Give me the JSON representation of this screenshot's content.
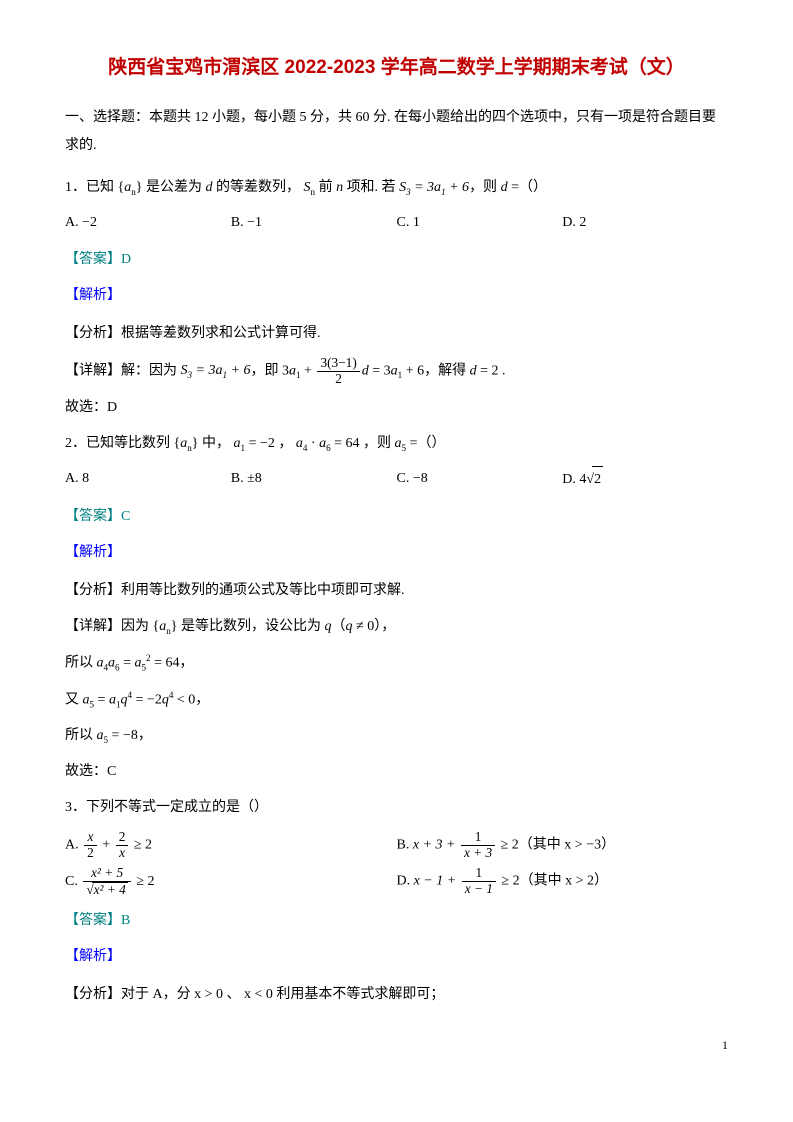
{
  "title": "陕西省宝鸡市渭滨区 2022-2023 学年高二数学上学期期末考试（文）",
  "section_header": "一、选择题：本题共 12 小题，每小题 5 分，共 60 分. 在每小题给出的四个选项中，只有一项是符合题目要求的.",
  "colors": {
    "title": "#c00000",
    "answer": "#008080",
    "analysis": "#0000ff",
    "text": "#000000",
    "background": "#ffffff"
  },
  "q1": {
    "num": "1．",
    "stem_part1": "已知 {",
    "stem_var1": "a",
    "stem_sub1": "n",
    "stem_part2": "} 是公差为 ",
    "stem_var2": "d",
    "stem_part3": " 的等差数列， ",
    "stem_var3": "S",
    "stem_sub3": "n",
    "stem_part4": " 前 ",
    "stem_var4": "n",
    "stem_part5": " 项和. 若 ",
    "stem_eq": "S₃ = 3a₁ + 6",
    "stem_part6": "，则 ",
    "stem_var5": "d",
    "stem_part7": " =（）",
    "optA_label": "A.",
    "optA": "−2",
    "optB_label": "B.",
    "optB": "−1",
    "optC_label": "C.",
    "optC": "1",
    "optD_label": "D.",
    "optD": "2",
    "answer": "【答案】D",
    "analysis_label": "【解析】",
    "analysis_line1": "【分析】根据等差数列求和公式计算可得.",
    "detail_prefix": "【详解】解：因为 ",
    "detail_eq1": "S₃ = 3a₁ + 6",
    "detail_mid1": "，即 3",
    "detail_var1": "a",
    "detail_sub1": "1",
    "detail_mid2": " + ",
    "frac_num": "3(3−1)",
    "frac_den": "2",
    "detail_var2": "d",
    "detail_mid3": " = 3",
    "detail_var3": "a",
    "detail_sub3": "1",
    "detail_mid4": " + 6，解得 ",
    "detail_var4": "d",
    "detail_mid5": " = 2 .",
    "conclusion": "故选：D"
  },
  "q2": {
    "num": "2．",
    "stem_part1": "已知等比数列 {",
    "stem_var1": "a",
    "stem_sub1": "n",
    "stem_part2": "} 中， ",
    "stem_var2": "a",
    "stem_sub2": "1",
    "stem_part3": " = −2 ， ",
    "stem_var3": "a",
    "stem_sub3": "4",
    "stem_part4": " · ",
    "stem_var4": "a",
    "stem_sub4": "6",
    "stem_part5": " = 64 ，则 ",
    "stem_var5": "a",
    "stem_sub5": "5",
    "stem_part6": " =（）",
    "optA_label": "A.",
    "optA": "8",
    "optB_label": "B.",
    "optB": "±8",
    "optC_label": "C.",
    "optC": "−8",
    "optD_label": "D.",
    "optD_prefix": "4",
    "optD_sqrt": "2",
    "answer": "【答案】C",
    "analysis_label": "【解析】",
    "analysis_line1": "【分析】利用等比数列的通项公式及等比中项即可求解.",
    "detail_line1_prefix": "【详解】因为 {",
    "detail_var_an": "a",
    "detail_sub_an": "n",
    "detail_line1_mid": "} 是等比数列，设公比为 ",
    "detail_var_q": "q",
    "detail_line1_suffix": "（q ≠ 0），",
    "line2_prefix": "所以 ",
    "line2_a4": "a",
    "line2_sub4": "4",
    "line2_a6": "a",
    "line2_sub6": "6",
    "line2_mid": " = ",
    "line2_a5": "a",
    "line2_sub5": "5",
    "line2_sup": "2",
    "line2_suffix": " = 64，",
    "line3_prefix": "又 ",
    "line3_a5": "a",
    "line3_sub5": "5",
    "line3_mid1": " = ",
    "line3_a1": "a",
    "line3_sub1": "1",
    "line3_q": "q",
    "line3_sup4a": "4",
    "line3_mid2": " = −2",
    "line3_q2": "q",
    "line3_sup4b": "4",
    "line3_suffix": " < 0，",
    "line4_prefix": "所以 ",
    "line4_a5": "a",
    "line4_sub5": "5",
    "line4_suffix": " = −8，",
    "conclusion": "故选：C"
  },
  "q3": {
    "num": "3．",
    "stem": "下列不等式一定成立的是（）",
    "optA_label": "A.  ",
    "optA_frac1_num": "x",
    "optA_frac1_den": "2",
    "optA_plus": " + ",
    "optA_frac2_num": "2",
    "optA_frac2_den": "x",
    "optA_suffix": " ≥ 2",
    "optB_label": "B.  ",
    "optB_prefix": "x + 3 + ",
    "optB_frac_num": "1",
    "optB_frac_den": "x + 3",
    "optB_suffix": " ≥ 2（其中 x > −3）",
    "optC_label": "C.  ",
    "optC_frac_num": "x² + 5",
    "optC_sqrt_content": "x² + 4",
    "optC_suffix": " ≥ 2",
    "optD_label": "D.  ",
    "optD_prefix": "x − 1 + ",
    "optD_frac_num": "1",
    "optD_frac_den": "x − 1",
    "optD_suffix": " ≥ 2（其中 x > 2）",
    "answer": "【答案】B",
    "analysis_label": "【解析】",
    "analysis_line1": "【分析】对于 A，分 x > 0 、 x < 0 利用基本不等式求解即可；"
  },
  "page_number": "1"
}
